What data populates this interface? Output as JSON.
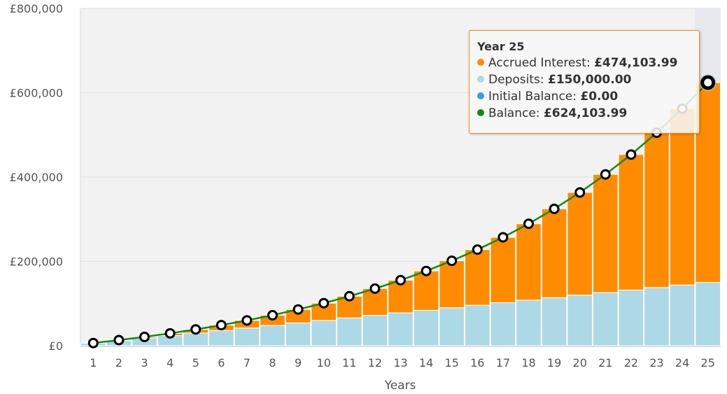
{
  "chart_data": {
    "type": "bar",
    "stacked": true,
    "xlabel": "Years",
    "ylabel": "",
    "ylim": [
      0,
      800000
    ],
    "yticks": [
      0,
      200000,
      400000,
      600000,
      800000
    ],
    "ytick_labels": [
      "£0",
      "£200,000",
      "£400,000",
      "£600,000",
      "£800,000"
    ],
    "categories": [
      "1",
      "2",
      "3",
      "4",
      "5",
      "6",
      "7",
      "8",
      "9",
      "10",
      "11",
      "12",
      "13",
      "14",
      "15",
      "16",
      "17",
      "18",
      "19",
      "20",
      "21",
      "22",
      "23",
      "24",
      "25"
    ],
    "grid": true,
    "series": [
      {
        "name": "Accrued Interest",
        "kind": "bar",
        "color": "#ff8c00",
        "values": [
          321,
          1277,
          2930,
          5352,
          8618,
          12814,
          18033,
          24378,
          31961,
          40907,
          51354,
          63450,
          77362,
          93273,
          111381,
          131909,
          155099,
          181217,
          210558,
          243446,
          280235,
          321318,
          367126,
          418131,
          474104
        ]
      },
      {
        "name": "Deposits",
        "kind": "bar",
        "color": "#add8e6",
        "values": [
          6000,
          12000,
          18000,
          24000,
          30000,
          36000,
          42000,
          48000,
          54000,
          60000,
          66000,
          72000,
          78000,
          84000,
          90000,
          96000,
          102000,
          108000,
          114000,
          120000,
          126000,
          132000,
          138000,
          144000,
          150000
        ]
      },
      {
        "name": "Initial Balance",
        "kind": "bar",
        "color": "#29a3e8",
        "values": [
          0,
          0,
          0,
          0,
          0,
          0,
          0,
          0,
          0,
          0,
          0,
          0,
          0,
          0,
          0,
          0,
          0,
          0,
          0,
          0,
          0,
          0,
          0,
          0,
          0
        ]
      },
      {
        "name": "Balance",
        "kind": "line",
        "color": "#138a13",
        "values": [
          6321,
          13277,
          20930,
          29352,
          38618,
          48814,
          60033,
          72378,
          85961,
          100907,
          117354,
          135450,
          155362,
          177273,
          201381,
          227909,
          257099,
          289217,
          324558,
          363446,
          406235,
          453318,
          505126,
          562131,
          624104
        ]
      }
    ],
    "highlighted_category": "25",
    "tooltip": {
      "title": "Year 25",
      "rows": [
        {
          "label": "Accrued Interest: ",
          "value": "£474,103.99",
          "color": "#ff8c00"
        },
        {
          "label": "Deposits: ",
          "value": "£150,000.00",
          "color": "#add8e6"
        },
        {
          "label": "Initial Balance: ",
          "value": "£0.00",
          "color": "#29a3e8"
        },
        {
          "label": "Balance: ",
          "value": "£624,103.99",
          "color": "#138a13"
        }
      ]
    }
  }
}
